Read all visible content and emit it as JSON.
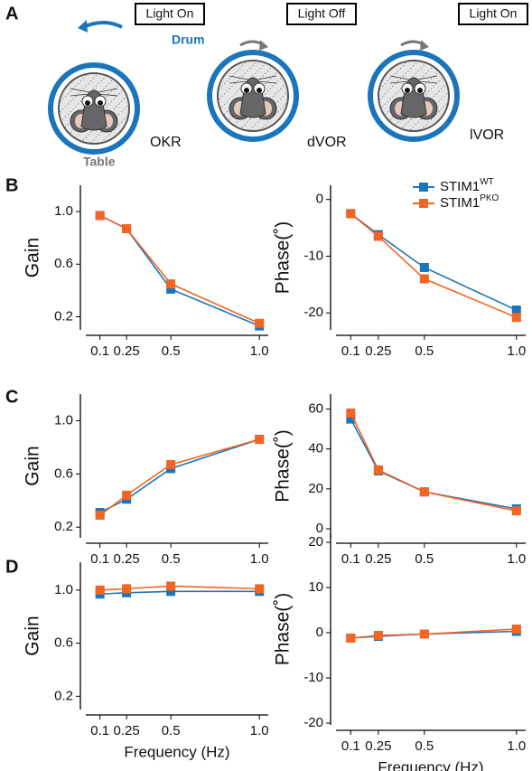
{
  "panel_labels": [
    "A",
    "B",
    "C",
    "D"
  ],
  "diagrams": {
    "okr": {
      "light": "Light On",
      "drum": "Drum",
      "table": "Table",
      "label": "OKR"
    },
    "dvor": {
      "light": "Light Off",
      "label": "dVOR"
    },
    "lvor": {
      "light": "Light On",
      "label": "lVOR"
    }
  },
  "chart_data": [
    {
      "type": "line",
      "ylabel": "Gain",
      "x": [
        0.1,
        0.25,
        0.5,
        1.0
      ],
      "xlim": [
        0.02,
        1.05
      ],
      "xticks": [
        0.1,
        0.25,
        0.5,
        {
          "value": 1,
          "label": "1.0"
        }
      ],
      "ylim": [
        0.1,
        1.2
      ],
      "yticks": [
        0.2,
        0.6,
        {
          "value": 1,
          "label": "1.0"
        }
      ],
      "series": [
        {
          "color": "#1a75bc",
          "values": [
            0.97,
            0.87,
            0.41,
            0.13
          ]
        },
        {
          "color": "#f26522",
          "values": [
            0.97,
            0.87,
            0.45,
            0.15
          ]
        }
      ]
    },
    {
      "type": "line",
      "ylabel": "Phase(˚)",
      "x": [
        0.1,
        0.25,
        0.5,
        1.0
      ],
      "xlim": [
        0.02,
        1.05
      ],
      "xticks": [
        0.1,
        0.25,
        0.5,
        {
          "value": 1,
          "label": "1.0"
        }
      ],
      "ylim": [
        -23,
        2.5
      ],
      "yticks": [
        0,
        -10,
        -20
      ],
      "legend": "upper right",
      "series": [
        {
          "name": "STIM1",
          "superscript": "WT",
          "color": "#1a75bc",
          "values": [
            -2.5,
            -6.2,
            -12,
            -19.5
          ]
        },
        {
          "name": "STIM1",
          "superscript": "PKO",
          "color": "#f26522",
          "values": [
            -2.5,
            -6.5,
            -14,
            -20.8
          ]
        }
      ]
    },
    {
      "type": "line",
      "ylabel": "Gain",
      "x": [
        0.1,
        0.25,
        0.5,
        1.0
      ],
      "xlim": [
        0.02,
        1.05
      ],
      "xticks": [
        0.1,
        0.25,
        0.5,
        {
          "value": 1,
          "label": "1.0"
        }
      ],
      "ylim": [
        0.12,
        1.2
      ],
      "yticks": [
        0.2,
        0.6,
        {
          "value": 1,
          "label": "1.0"
        }
      ],
      "series": [
        {
          "color": "#1a75bc",
          "values": [
            0.31,
            0.41,
            0.64,
            0.86
          ]
        },
        {
          "color": "#f26522",
          "values": [
            0.29,
            0.44,
            0.67,
            0.86
          ]
        }
      ]
    },
    {
      "type": "line",
      "ylabel": "Phase(˚)",
      "x": [
        0.1,
        0.25,
        0.5,
        1.0
      ],
      "xlim": [
        0.02,
        1.05
      ],
      "xticks": [
        0.1,
        0.25,
        0.5,
        {
          "value": 1,
          "label": "1.0"
        }
      ],
      "ylim": [
        -4.5,
        67.5
      ],
      "yticks": [
        0,
        20,
        40,
        60
      ],
      "series": [
        {
          "color": "#1a75bc",
          "values": [
            55,
            29,
            18.5,
            10
          ]
        },
        {
          "color": "#f26522",
          "values": [
            58,
            29.5,
            18.5,
            9
          ]
        }
      ]
    },
    {
      "type": "line",
      "ylabel": "Gain",
      "xlabel": "Frequency (Hz)",
      "x": [
        0.1,
        0.25,
        0.5,
        1.0
      ],
      "xlim": [
        0.02,
        1.05
      ],
      "xticks": [
        0.1,
        0.25,
        0.5,
        {
          "value": 1,
          "label": "1.0"
        }
      ],
      "ylim": [
        0.1,
        1.21
      ],
      "yticks": [
        0.2,
        0.6,
        {
          "value": 1,
          "label": "1.0"
        }
      ],
      "series": [
        {
          "color": "#1a75bc",
          "values": [
            0.97,
            0.98,
            0.99,
            0.99
          ]
        },
        {
          "color": "#f26522",
          "values": [
            1.0,
            1.01,
            1.03,
            1.01
          ]
        }
      ]
    },
    {
      "type": "line",
      "ylabel": "Phase(˚)",
      "xlabel": "Frequency (Hz)",
      "x": [
        0.1,
        0.25,
        0.5,
        1.0
      ],
      "xlim": [
        0.02,
        1.05
      ],
      "xticks": [
        0.1,
        0.25,
        0.5,
        {
          "value": 1,
          "label": "1.0"
        }
      ],
      "ylim": [
        -20.4,
        22
      ],
      "yticks": [
        20,
        10,
        0,
        -10,
        -20
      ],
      "series": [
        {
          "color": "#1a75bc",
          "values": [
            -1.2,
            -0.8,
            -0.3,
            0.3
          ]
        },
        {
          "color": "#f26522",
          "values": [
            -1.2,
            -0.6,
            -0.3,
            0.8
          ]
        }
      ]
    }
  ]
}
